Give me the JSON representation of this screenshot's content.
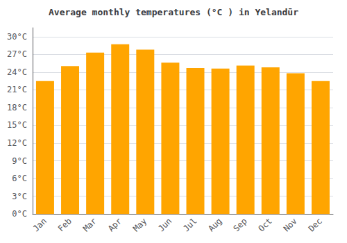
{
  "chart_data": {
    "type": "bar",
    "title": "Average monthly temperatures (°C ) in Yelandūr",
    "categories": [
      "Jan",
      "Feb",
      "Mar",
      "Apr",
      "May",
      "Jun",
      "Jul",
      "Aug",
      "Sep",
      "Oct",
      "Nov",
      "Dec"
    ],
    "values": [
      22.5,
      25.0,
      27.3,
      28.7,
      27.8,
      25.6,
      24.7,
      24.6,
      25.1,
      24.8,
      23.8,
      22.5
    ],
    "color": "#FFA500",
    "ylim": [
      0,
      31.5
    ],
    "yticks": [
      {
        "value": 0,
        "label": "0°C"
      },
      {
        "value": 3,
        "label": "3°C"
      },
      {
        "value": 6,
        "label": "6°C"
      },
      {
        "value": 9,
        "label": "9°C"
      },
      {
        "value": 12,
        "label": "12°C"
      },
      {
        "value": 15,
        "label": "15°C"
      },
      {
        "value": 18,
        "label": "18°C"
      },
      {
        "value": 21,
        "label": "21°C"
      },
      {
        "value": 24,
        "label": "24°C"
      },
      {
        "value": 27,
        "label": "27°C"
      },
      {
        "value": 30,
        "label": "30°C"
      }
    ],
    "grid": true
  }
}
